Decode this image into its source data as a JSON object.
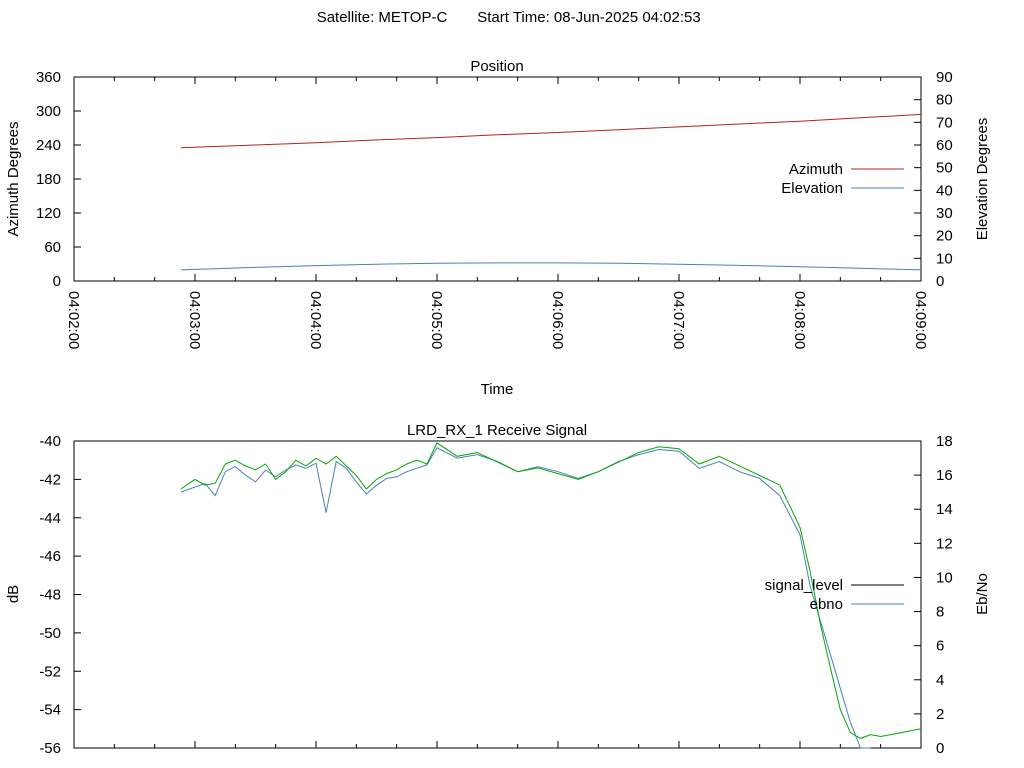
{
  "header": {
    "satellite_label": "Satellite: METOP-C",
    "start_time_label": "Start Time: 08-Jun-2025 04:02:53"
  },
  "chart_data": [
    {
      "id": "position",
      "type": "line",
      "title": "Position",
      "xlabel": "Time",
      "ylabel_left": "Azimuth Degrees",
      "ylabel_right": "Elevation Degrees",
      "x_tick_labels": [
        "04:02:00",
        "04:03:00",
        "04:04:00",
        "04:05:00",
        "04:06:00",
        "04:07:00",
        "04:08:00",
        "04:09:00"
      ],
      "xlim": [
        "04:02:00",
        "04:09:00"
      ],
      "y_left_lim": [
        0,
        360
      ],
      "y_left_ticks": [
        0,
        60,
        120,
        180,
        240,
        300,
        360
      ],
      "y_right_lim": [
        0,
        90
      ],
      "y_right_ticks": [
        0,
        10,
        20,
        30,
        40,
        50,
        60,
        70,
        80,
        90
      ],
      "legend_position": "right",
      "series": [
        {
          "name": "Azimuth",
          "axis": "left",
          "color": "#b22222",
          "x": [
            "04:02:53",
            "04:03:30",
            "04:04:00",
            "04:04:30",
            "04:05:00",
            "04:05:30",
            "04:06:00",
            "04:06:30",
            "04:07:00",
            "04:07:30",
            "04:08:00",
            "04:08:30",
            "04:09:00"
          ],
          "y": [
            235,
            240,
            244,
            249,
            253,
            258,
            262,
            267,
            272,
            277,
            282,
            288,
            294
          ]
        },
        {
          "name": "Elevation",
          "axis": "right",
          "color": "#4a7fbf",
          "x": [
            "04:02:53",
            "04:03:30",
            "04:04:00",
            "04:04:30",
            "04:05:00",
            "04:05:30",
            "04:06:00",
            "04:06:30",
            "04:07:00",
            "04:07:30",
            "04:08:00",
            "04:08:30",
            "04:09:00"
          ],
          "y": [
            4.9,
            6.0,
            6.8,
            7.4,
            7.8,
            8.0,
            8.0,
            7.8,
            7.4,
            6.9,
            6.3,
            5.6,
            4.9
          ]
        }
      ]
    },
    {
      "id": "receive-signal",
      "type": "line",
      "title": "LRD_RX_1 Receive Signal",
      "ylabel_left": "dB",
      "ylabel_right": "Eb/No",
      "xlim": [
        "04:02:00",
        "04:09:00"
      ],
      "y_left_lim": [
        -56,
        -40
      ],
      "y_left_ticks": [
        -56,
        -54,
        -52,
        -50,
        -48,
        -46,
        -44,
        -42,
        -40
      ],
      "y_right_lim": [
        0,
        18
      ],
      "y_right_ticks": [
        0,
        2,
        4,
        6,
        8,
        10,
        12,
        14,
        16,
        18
      ],
      "legend_position": "right",
      "series": [
        {
          "name": "signal_level",
          "axis": "left",
          "color": "#000000",
          "x": [],
          "y": []
        },
        {
          "name": "ebno",
          "axis": "right",
          "color": "#4a7fbf",
          "x": [
            "04:02:53",
            "04:03:00",
            "04:03:05",
            "04:03:10",
            "04:03:15",
            "04:03:20",
            "04:03:25",
            "04:03:30",
            "04:03:35",
            "04:03:40",
            "04:03:45",
            "04:03:50",
            "04:03:55",
            "04:04:00",
            "04:04:05",
            "04:04:10",
            "04:04:15",
            "04:04:20",
            "04:04:25",
            "04:04:30",
            "04:04:35",
            "04:04:40",
            "04:04:45",
            "04:04:50",
            "04:04:55",
            "04:05:00",
            "04:05:10",
            "04:05:20",
            "04:05:30",
            "04:05:40",
            "04:05:50",
            "04:06:00",
            "04:06:10",
            "04:06:20",
            "04:06:30",
            "04:06:40",
            "04:06:50",
            "04:07:00",
            "04:07:10",
            "04:07:20",
            "04:07:30",
            "04:07:40",
            "04:07:50",
            "04:08:00",
            "04:08:05",
            "04:08:10",
            "04:08:15",
            "04:08:20",
            "04:08:25",
            "04:08:30",
            "04:08:35"
          ],
          "y": [
            15.0,
            15.3,
            15.5,
            14.8,
            16.2,
            16.5,
            16.0,
            15.6,
            16.3,
            15.9,
            16.3,
            16.6,
            16.4,
            16.7,
            13.8,
            16.8,
            16.4,
            15.6,
            14.9,
            15.4,
            15.8,
            15.9,
            16.2,
            16.4,
            16.6,
            17.6,
            17.0,
            17.2,
            16.8,
            16.2,
            16.5,
            16.2,
            15.8,
            16.2,
            16.8,
            17.2,
            17.5,
            17.4,
            16.4,
            16.8,
            16.2,
            15.8,
            14.8,
            12.5,
            9.5,
            7.5,
            5.5,
            3.5,
            1.5,
            0.0,
            0.0
          ]
        },
        {
          "name": "",
          "axis": "left",
          "color": "#00aa00",
          "x": [
            "04:02:53",
            "04:03:00",
            "04:03:05",
            "04:03:10",
            "04:03:15",
            "04:03:20",
            "04:03:25",
            "04:03:30",
            "04:03:35",
            "04:03:40",
            "04:03:45",
            "04:03:50",
            "04:03:55",
            "04:04:00",
            "04:04:05",
            "04:04:10",
            "04:04:15",
            "04:04:20",
            "04:04:25",
            "04:04:30",
            "04:04:35",
            "04:04:40",
            "04:04:45",
            "04:04:50",
            "04:04:55",
            "04:05:00",
            "04:05:10",
            "04:05:20",
            "04:05:30",
            "04:05:40",
            "04:05:50",
            "04:06:00",
            "04:06:10",
            "04:06:20",
            "04:06:30",
            "04:06:40",
            "04:06:50",
            "04:07:00",
            "04:07:10",
            "04:07:20",
            "04:07:30",
            "04:07:40",
            "04:07:50",
            "04:08:00",
            "04:08:05",
            "04:08:10",
            "04:08:15",
            "04:08:20",
            "04:08:25",
            "04:08:30",
            "04:08:35",
            "04:08:40",
            "04:08:45",
            "04:08:50",
            "04:08:55",
            "04:09:00"
          ],
          "y": [
            -42.5,
            -42.0,
            -42.3,
            -42.2,
            -41.2,
            -41.0,
            -41.3,
            -41.5,
            -41.2,
            -42.0,
            -41.6,
            -41.0,
            -41.3,
            -40.9,
            -41.2,
            -40.8,
            -41.3,
            -41.8,
            -42.5,
            -42.0,
            -41.7,
            -41.5,
            -41.2,
            -41.0,
            -41.2,
            -40.1,
            -40.8,
            -40.6,
            -41.1,
            -41.6,
            -41.4,
            -41.7,
            -42.0,
            -41.6,
            -41.1,
            -40.6,
            -40.3,
            -40.4,
            -41.2,
            -40.8,
            -41.3,
            -41.8,
            -42.3,
            -44.5,
            -46.8,
            -49.5,
            -51.8,
            -54.0,
            -55.2,
            -55.5,
            -55.3,
            -55.4,
            -55.3,
            -55.2,
            -55.1,
            -55.0
          ]
        }
      ]
    }
  ]
}
